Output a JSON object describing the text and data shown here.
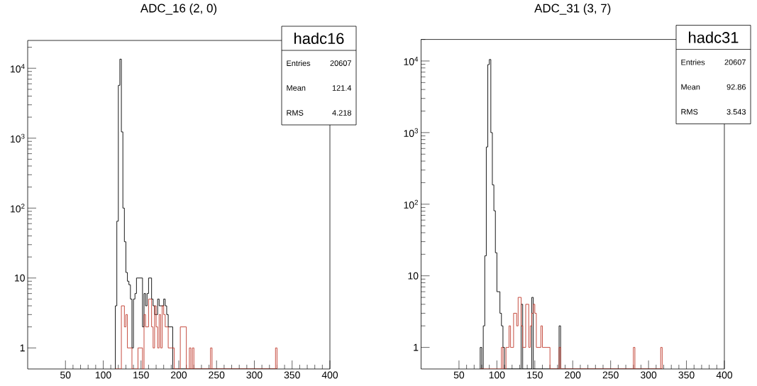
{
  "chart_data": [
    {
      "type": "histogram",
      "title": "ADC_16 (2, 0)",
      "log": true,
      "xlim": [
        0,
        400
      ],
      "ylim": [
        0.5,
        25000
      ],
      "xticks": [
        50,
        100,
        150,
        200,
        250,
        300,
        350,
        400
      ],
      "yticks": [
        1,
        10,
        {
          "value": 100,
          "label": "10$^{2}$"
        },
        {
          "value": 1000,
          "label": "10$^{3}$"
        },
        {
          "value": 10000,
          "label": "10$^{4}$"
        }
      ],
      "bins": [
        116,
        118,
        120,
        122,
        124,
        126,
        128,
        130,
        132,
        134,
        136,
        138,
        140,
        142,
        144,
        146,
        148,
        150,
        152,
        154,
        156,
        158,
        160,
        162,
        164,
        166,
        168,
        170,
        172,
        174,
        176,
        178,
        180,
        182,
        184,
        186,
        188,
        190,
        192,
        194,
        196,
        198,
        200,
        202,
        204,
        206,
        208,
        210,
        212,
        214,
        216,
        218,
        220,
        222,
        224,
        226,
        228,
        230,
        232,
        234,
        236,
        238,
        240,
        242,
        244,
        246,
        248,
        250,
        252,
        254,
        256,
        258,
        260,
        262,
        264,
        266,
        268,
        270,
        272,
        274,
        276,
        278,
        280,
        282,
        284,
        286,
        288,
        290,
        292,
        294,
        296,
        298,
        300,
        302,
        304,
        306,
        308,
        310,
        312,
        314,
        316,
        318,
        320,
        322,
        324,
        326,
        328,
        330
      ],
      "series": [
        {
          "color": "#000000",
          "values": [
            4,
            65,
            5700,
            13500,
            1230,
            100,
            33,
            12,
            9,
            8,
            5,
            1,
            5,
            6,
            10,
            10,
            10,
            10,
            2,
            6,
            4,
            6,
            10,
            10,
            5,
            4,
            3,
            3,
            5,
            4,
            4,
            4,
            5,
            4,
            3,
            2,
            2,
            2,
            null,
            null,
            null,
            null,
            null,
            null,
            null,
            null,
            null,
            null,
            null,
            null,
            null,
            null,
            null,
            null,
            null,
            null,
            null,
            null,
            null,
            null,
            null,
            null,
            null,
            null,
            null,
            null,
            null,
            null,
            null,
            null,
            null,
            null,
            null,
            null,
            null,
            null,
            null,
            null,
            null,
            null,
            null,
            null,
            null,
            null,
            null,
            null,
            null,
            null,
            null,
            null,
            null,
            null,
            null,
            null,
            null,
            null,
            null,
            null,
            null,
            null,
            null,
            null,
            null,
            null,
            null,
            null,
            null
          ]
        },
        {
          "color": "#c0392b",
          "values": [
            null,
            null,
            null,
            null,
            4,
            4,
            2,
            3,
            1,
            1,
            1,
            null,
            null,
            null,
            null,
            1,
            1,
            1,
            null,
            3,
            2,
            2,
            5,
            5,
            2,
            1,
            4,
            2,
            1,
            3,
            1,
            4,
            3,
            2,
            2,
            1,
            1,
            1,
            1,
            null,
            null,
            null,
            null,
            2,
            2,
            2,
            2,
            null,
            null,
            1,
            null,
            1,
            null,
            null,
            null,
            null,
            null,
            null,
            null,
            null,
            null,
            null,
            null,
            1,
            null,
            null,
            null,
            null,
            null,
            null,
            null,
            null,
            null,
            null,
            null,
            null,
            null,
            null,
            null,
            null,
            null,
            null,
            null,
            null,
            null,
            null,
            null,
            null,
            null,
            null,
            null,
            null,
            null,
            null,
            null,
            null,
            null,
            null,
            null,
            null,
            null,
            null,
            null,
            null,
            null,
            null,
            1
          ]
        }
      ],
      "annotations": [
        "hadc16",
        "Entries",
        "20607",
        "Mean",
        "121.4",
        "RMS",
        "4.218"
      ]
    },
    {
      "type": "histogram",
      "title": "ADC_31 (3, 7)",
      "log": true,
      "xlim": [
        0,
        400
      ],
      "ylim": [
        0.5,
        20000
      ],
      "xticks": [
        50,
        100,
        150,
        200,
        250,
        300,
        350,
        400
      ],
      "yticks": [
        1,
        10,
        {
          "value": 100,
          "label": "10$^{2}$"
        },
        {
          "value": 1000,
          "label": "10$^{3}$"
        },
        {
          "value": 10000,
          "label": "10$^{4}$"
        }
      ],
      "bins": [
        78,
        80,
        82,
        84,
        86,
        88,
        90,
        92,
        94,
        96,
        98,
        100,
        102,
        104,
        106,
        108,
        110,
        112,
        114,
        116,
        118,
        120,
        122,
        124,
        126,
        128,
        130,
        132,
        134,
        136,
        138,
        140,
        142,
        144,
        146,
        148,
        150,
        152,
        154,
        156,
        158,
        160,
        162,
        164,
        166,
        168,
        170,
        172,
        174,
        176,
        178,
        180,
        182,
        184,
        186,
        188,
        190,
        192,
        194,
        196,
        198,
        200,
        202,
        204,
        206,
        208,
        210,
        212,
        214,
        216,
        218,
        220,
        222,
        224,
        226,
        228,
        230,
        232,
        234,
        236,
        238,
        240,
        242,
        244,
        246,
        248,
        250,
        252,
        254,
        256,
        258,
        260,
        262,
        264,
        266,
        268,
        270,
        272,
        274,
        276,
        278,
        280,
        282,
        284,
        286,
        288,
        290,
        292,
        294,
        296,
        298,
        300,
        302,
        304,
        306,
        308,
        310,
        312,
        314,
        316,
        318
      ],
      "series": [
        {
          "color": "#000000",
          "values": [
            1,
            null,
            2,
            19,
            630,
            8900,
            10500,
            1000,
            186,
            81,
            21,
            6,
            6,
            3,
            2,
            1,
            null,
            null,
            null,
            null,
            null,
            null,
            null,
            null,
            null,
            null,
            null,
            4,
            null,
            null,
            null,
            null,
            null,
            null,
            5,
            null,
            null,
            null,
            null,
            null,
            null,
            null,
            null,
            null,
            null,
            null,
            null,
            null,
            null,
            null,
            null,
            null,
            2,
            null,
            null,
            null,
            null,
            null,
            null,
            null,
            null,
            null,
            null,
            null,
            null,
            null,
            null,
            null,
            null,
            null,
            null,
            null,
            null,
            null,
            null,
            null,
            null,
            null,
            null,
            null,
            null,
            null,
            null,
            null,
            null,
            null,
            null,
            null,
            null,
            null,
            null,
            null,
            null,
            null,
            null,
            null,
            null,
            null,
            null,
            null,
            null,
            null,
            null,
            null,
            null,
            null,
            null,
            null,
            null,
            null,
            null,
            null,
            null,
            null,
            null,
            null,
            null,
            null,
            null,
            null
          ]
        },
        {
          "color": "#c0392b",
          "values": [
            null,
            null,
            null,
            null,
            null,
            null,
            null,
            null,
            null,
            null,
            null,
            null,
            null,
            null,
            1,
            null,
            null,
            1,
            1,
            2,
            1,
            1,
            3,
            3,
            2,
            5,
            5,
            2,
            1,
            1,
            4,
            4,
            1,
            2,
            3,
            4,
            3,
            1,
            1,
            1,
            2,
            1,
            1,
            1,
            1,
            1,
            null,
            null,
            null,
            null,
            null,
            null,
            1,
            null,
            null,
            null,
            null,
            null,
            null,
            null,
            null,
            null,
            null,
            null,
            null,
            null,
            null,
            null,
            null,
            null,
            null,
            null,
            null,
            null,
            null,
            null,
            null,
            null,
            null,
            null,
            null,
            null,
            null,
            null,
            null,
            null,
            null,
            null,
            null,
            null,
            null,
            null,
            null,
            null,
            null,
            null,
            null,
            null,
            null,
            null,
            null,
            1,
            null,
            null,
            null,
            null,
            null,
            null,
            null,
            null,
            null,
            null,
            null,
            null,
            null,
            null,
            null,
            null,
            null,
            1
          ]
        }
      ],
      "annotations": [
        "hadc31",
        "Entries",
        "20607",
        "Mean",
        "92.86",
        "RMS",
        "3.543"
      ]
    }
  ]
}
